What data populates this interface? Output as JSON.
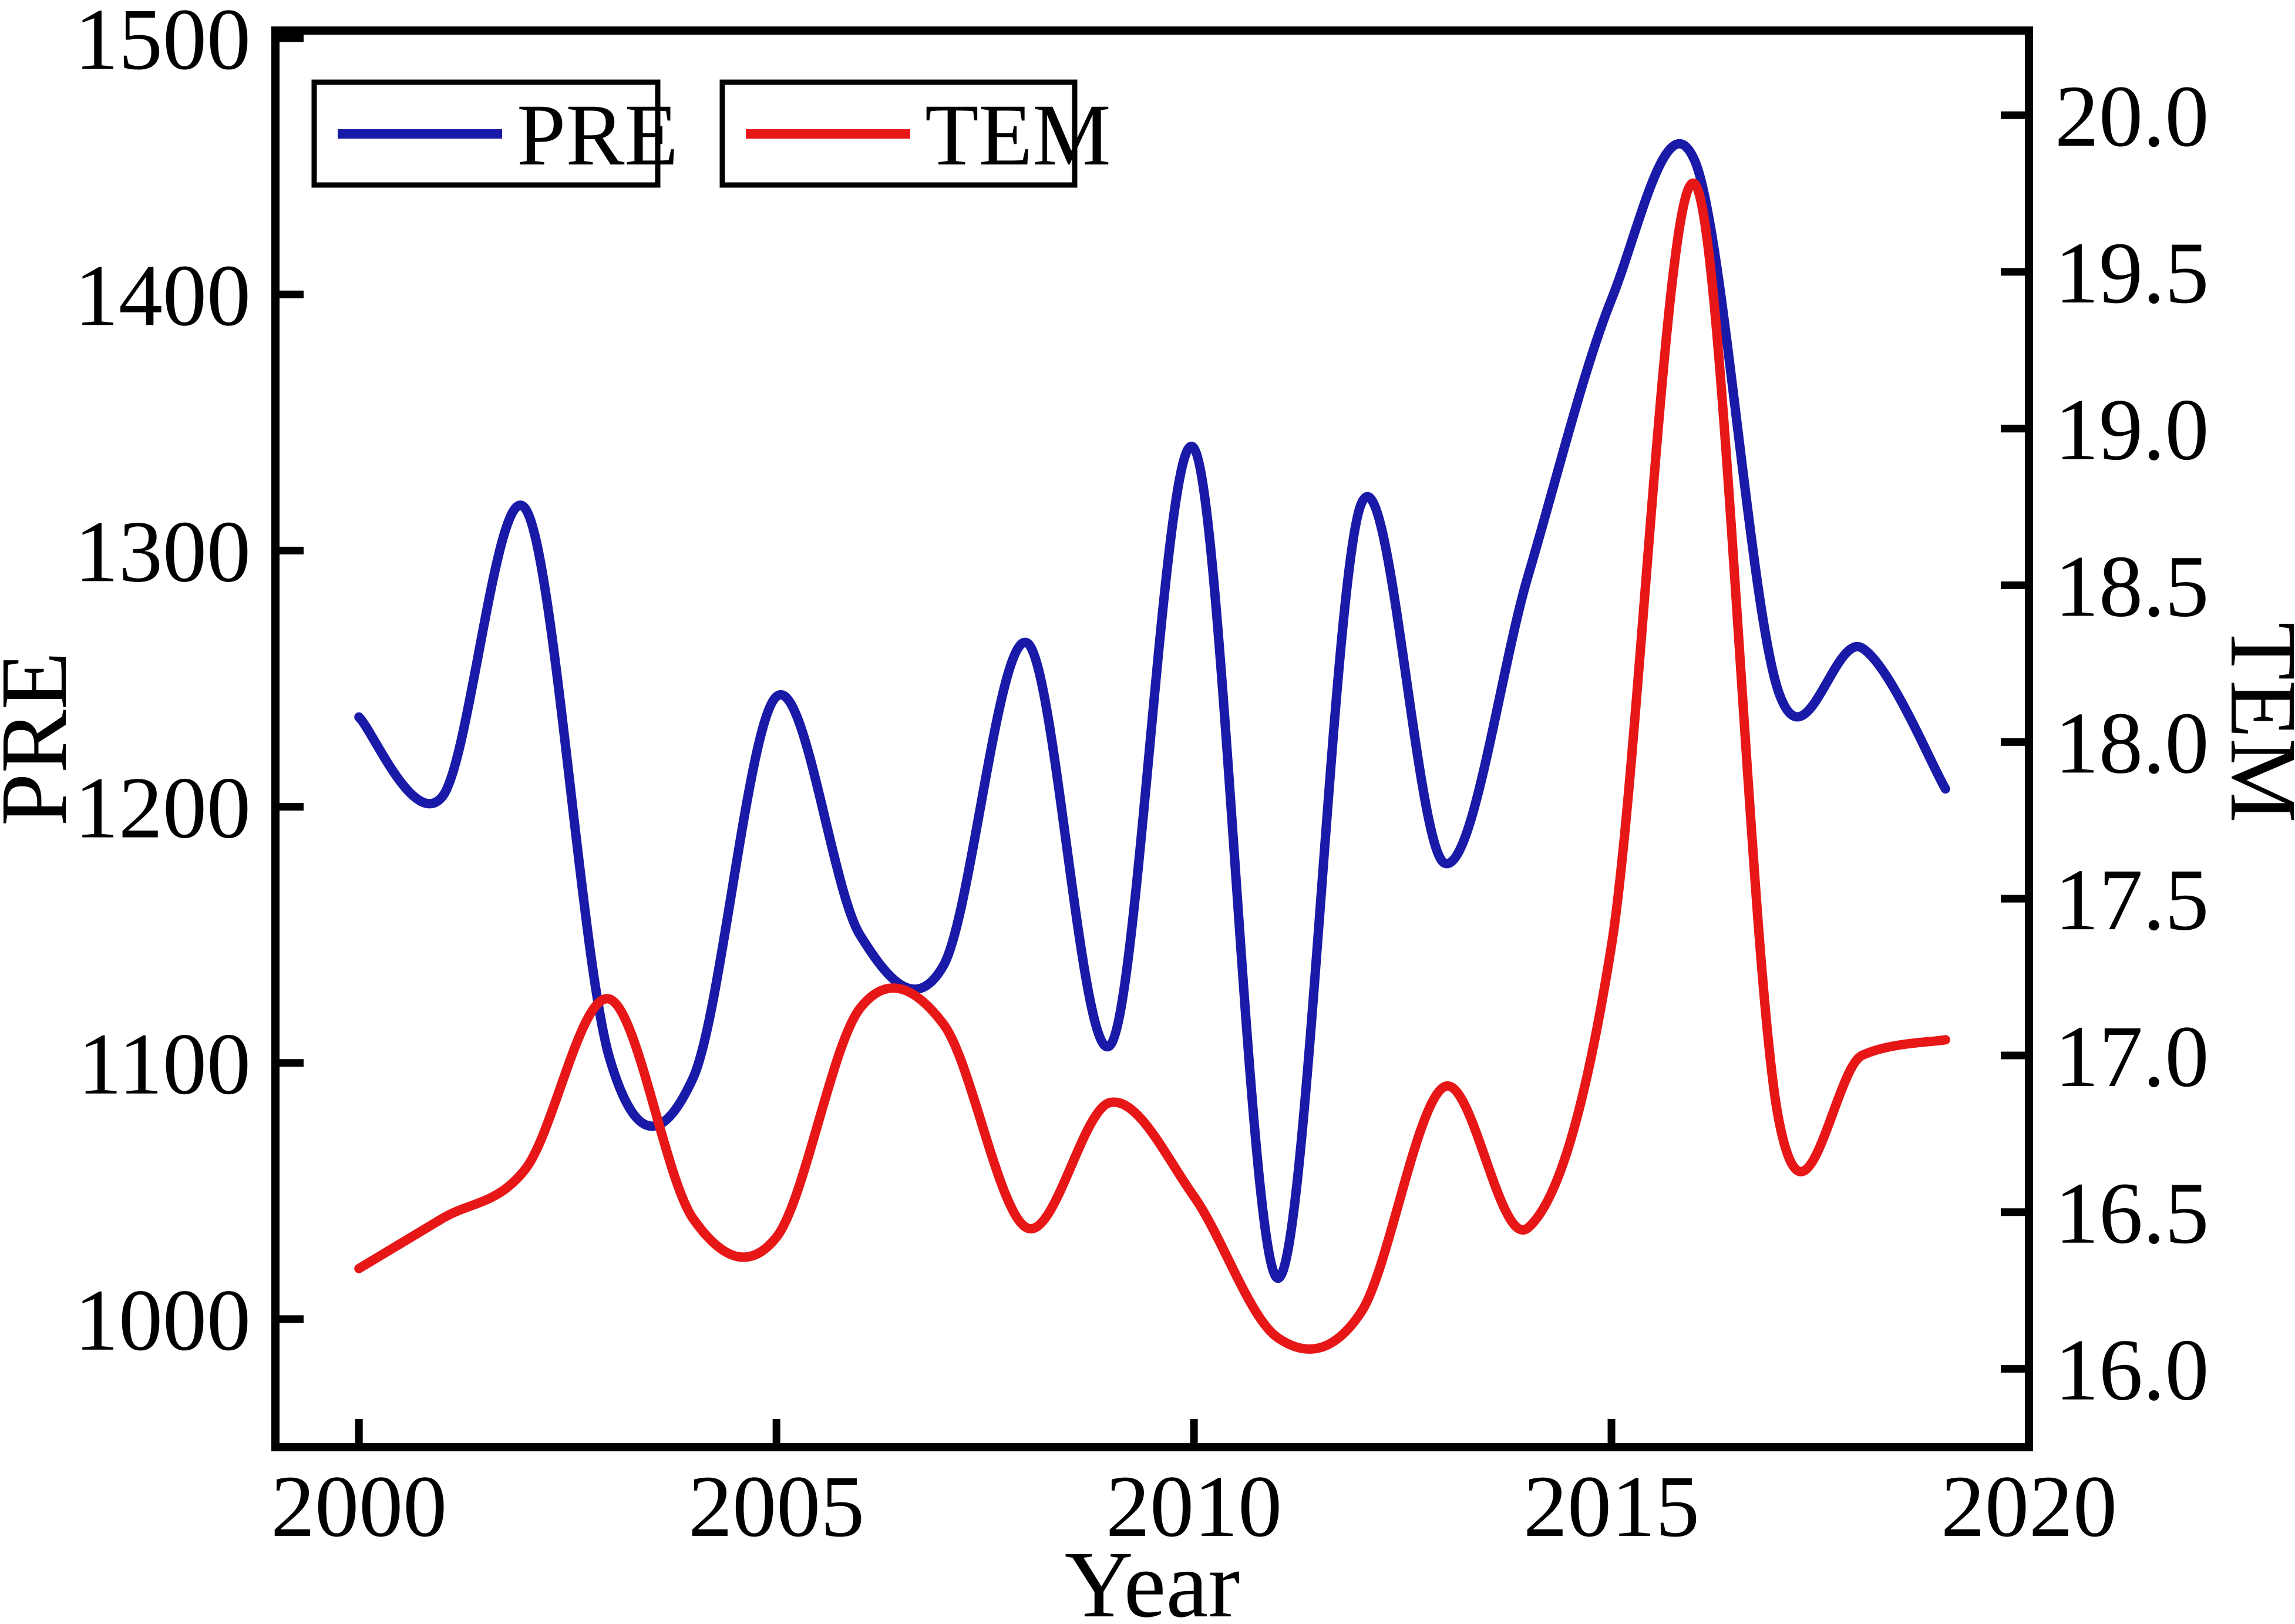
{
  "chart_data": {
    "type": "line",
    "title": "",
    "x": [
      2000,
      2001,
      2002,
      2003,
      2004,
      2005,
      2006,
      2007,
      2008,
      2009,
      2010,
      2011,
      2012,
      2013,
      2014,
      2015,
      2016,
      2017,
      2018,
      2019
    ],
    "series": [
      {
        "name": "PRE",
        "axis": "left",
        "color": "#1a1aa8",
        "values": [
          1235,
          1204,
          1316,
          1102,
          1094,
          1243,
          1150,
          1138,
          1264,
          1107,
          1340,
          1016,
          1318,
          1178,
          1290,
          1398,
          1452,
          1245,
          1262,
          1207
        ]
      },
      {
        "name": "TEM",
        "axis": "right",
        "color": "#e81717",
        "values": [
          16.32,
          16.48,
          16.64,
          17.18,
          16.48,
          16.42,
          17.15,
          17.1,
          16.45,
          16.85,
          16.55,
          16.1,
          16.18,
          16.9,
          16.45,
          17.35,
          19.78,
          16.8,
          17.0,
          17.05
        ]
      }
    ],
    "x_axis": {
      "label": "Year",
      "min": 1999,
      "max": 2020,
      "ticks": [
        2000,
        2005,
        2010,
        2015,
        2020
      ]
    },
    "y_left": {
      "label": "PRE",
      "min": 950,
      "max": 1503,
      "ticks": [
        1000,
        1100,
        1200,
        1300,
        1400,
        1500
      ]
    },
    "y_right": {
      "label": "TEM",
      "min": 15.75,
      "max": 20.27,
      "ticks": [
        "16.0",
        "16.5",
        "17.0",
        "17.5",
        "18.0",
        "18.5",
        "19.0",
        "19.5",
        "20.0"
      ]
    },
    "legend": [
      {
        "label": "PRE",
        "color": "#1a1aa8"
      },
      {
        "label": "TEM",
        "color": "#e81717"
      }
    ],
    "grid": false,
    "legend_position": "top-left-two-boxes",
    "frame_color": "#000000"
  }
}
